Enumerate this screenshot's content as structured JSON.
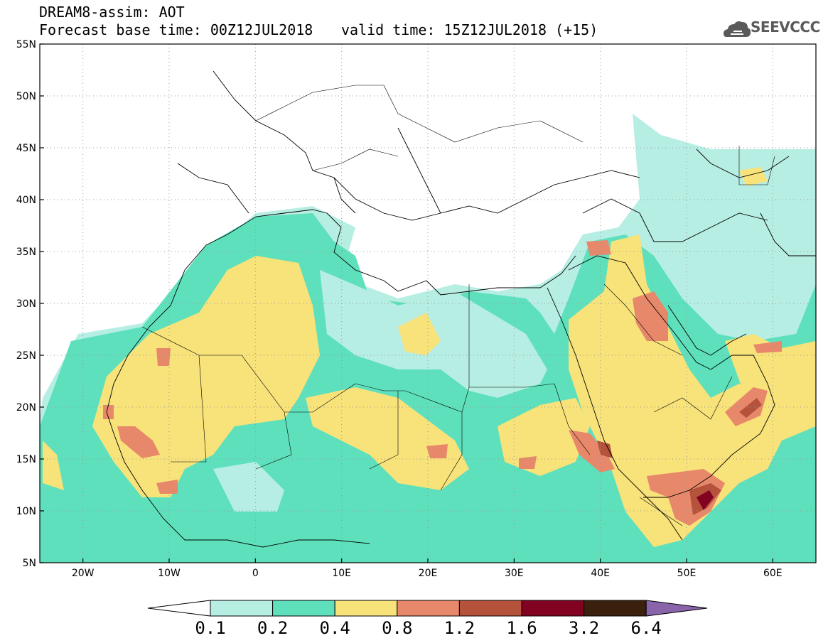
{
  "header": {
    "line1": "DREAM8-assim: AOT",
    "line2_left": "Forecast base time: 00Z12JUL2018",
    "line2_right": "valid time: 15Z12JUL2018 (+15)",
    "logo_text": "SEEVCCC",
    "logo_icon": "cloud-logo-icon"
  },
  "map": {
    "extent": {
      "lon": [
        -25,
        65
      ],
      "lat": [
        5,
        55
      ]
    },
    "gridlines": "dotted",
    "lat_ticks": [
      {
        "value": 55,
        "label": "55N"
      },
      {
        "value": 50,
        "label": "50N"
      },
      {
        "value": 45,
        "label": "45N"
      },
      {
        "value": 40,
        "label": "40N"
      },
      {
        "value": 35,
        "label": "35N"
      },
      {
        "value": 30,
        "label": "30N"
      },
      {
        "value": 25,
        "label": "25N"
      },
      {
        "value": 20,
        "label": "20N"
      },
      {
        "value": 15,
        "label": "15N"
      },
      {
        "value": 10,
        "label": "10N"
      },
      {
        "value": 5,
        "label": "5N"
      }
    ],
    "lon_ticks": [
      {
        "value": -20,
        "label": "20W"
      },
      {
        "value": -10,
        "label": "10W"
      },
      {
        "value": 0,
        "label": "0"
      },
      {
        "value": 10,
        "label": "10E"
      },
      {
        "value": 20,
        "label": "20E"
      },
      {
        "value": 30,
        "label": "30E"
      },
      {
        "value": 40,
        "label": "40E"
      },
      {
        "value": 50,
        "label": "50E"
      },
      {
        "value": 60,
        "label": "60E"
      }
    ]
  },
  "colorbar": {
    "colors": [
      "#ffffff",
      "#b7eee4",
      "#5ee0bd",
      "#f8e27a",
      "#e8886a",
      "#b4523c",
      "#820222",
      "#3c200e",
      "#8a64aa"
    ],
    "labels": [
      "0.1",
      "0.2",
      "0.4",
      "0.8",
      "1.2",
      "1.6",
      "3.2",
      "6.4"
    ]
  }
}
